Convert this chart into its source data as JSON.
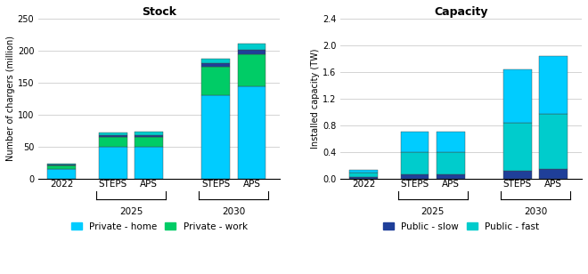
{
  "stock_title": "Stock",
  "capacity_title": "Capacity",
  "stock_ylabel": "Number of chargers (million)",
  "capacity_ylabel": "Installed capacity (TW)",
  "stock_ylim": [
    0,
    250
  ],
  "capacity_ylim": [
    0,
    2.4
  ],
  "stock_yticks": [
    0,
    50,
    100,
    150,
    200,
    250
  ],
  "capacity_yticks": [
    0.0,
    0.4,
    0.8,
    1.2,
    1.6,
    2.0,
    2.4
  ],
  "stock_private_home": [
    15,
    50,
    50,
    130,
    145
  ],
  "stock_private_work": [
    5,
    15,
    15,
    45,
    50
  ],
  "stock_public_slow": [
    1.5,
    3.0,
    3.0,
    5.0,
    6.0
  ],
  "stock_public_fast": [
    2.0,
    4.0,
    5.0,
    8.0,
    10.0
  ],
  "cap_public_slow": [
    0.02,
    0.07,
    0.07,
    0.12,
    0.14
  ],
  "cap_public_fast": [
    0.07,
    0.33,
    0.33,
    0.72,
    0.83
  ],
  "cap_private_home": [
    0.04,
    0.3,
    0.3,
    0.8,
    0.87
  ],
  "color_private_home": "#00CCFF",
  "color_private_work": "#00CC66",
  "color_public_slow": "#1F3F99",
  "color_public_fast": "#00CCCC",
  "background": "#FFFFFF",
  "grid_color": "#CCCCCC"
}
